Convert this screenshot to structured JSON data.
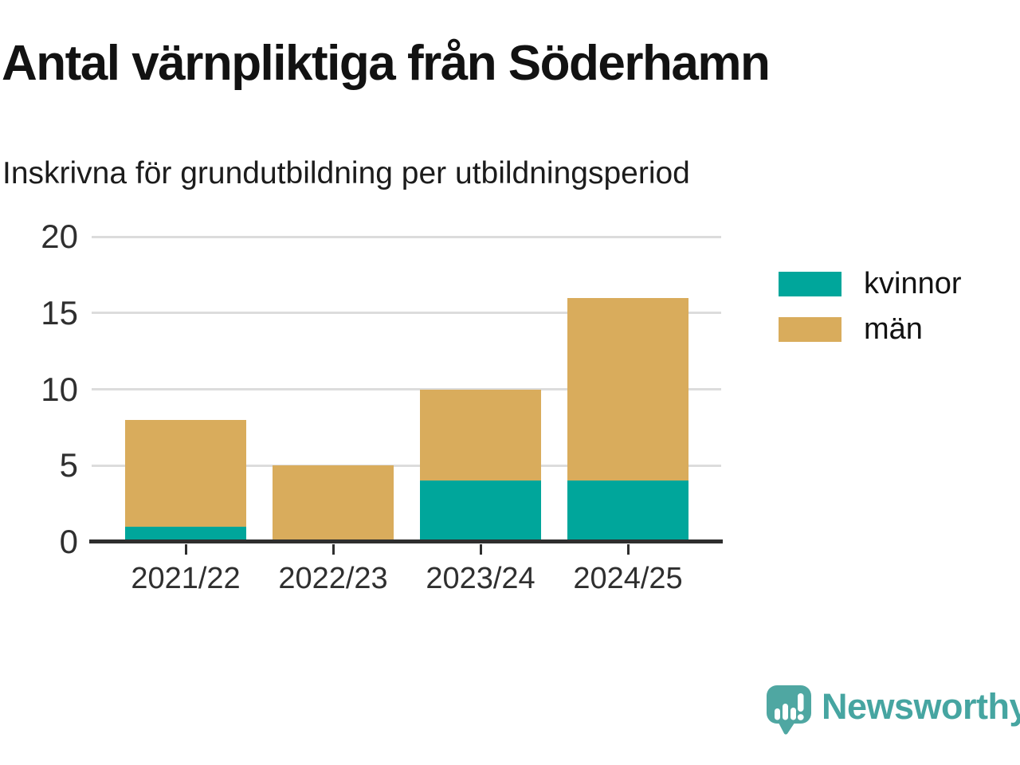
{
  "header": {
    "title": "Antal värnpliktiga från Söderhamn",
    "subtitle": "Inskrivna för grundutbildning per utbildningsperiod"
  },
  "chart_data": {
    "type": "bar",
    "stacked": true,
    "categories": [
      "2021/22",
      "2022/23",
      "2023/24",
      "2024/25"
    ],
    "series": [
      {
        "name": "kvinnor",
        "color": "#00a69b",
        "values": [
          1,
          0,
          4,
          4
        ]
      },
      {
        "name": "män",
        "color": "#d9ac5c",
        "values": [
          7,
          5,
          6,
          12
        ]
      }
    ],
    "totals": [
      8,
      5,
      10,
      16
    ],
    "title": "Antal värnpliktiga från Söderhamn",
    "subtitle": "Inskrivna för grundutbildning per utbildningsperiod",
    "xlabel": "",
    "ylabel": "",
    "ylim": [
      0,
      20
    ],
    "yticks": [
      0,
      5,
      10,
      15,
      20
    ],
    "grid": true,
    "legend_position": "right"
  },
  "colors": {
    "kvinnor": "#00a69b",
    "man": "#d9ac5c",
    "axis": "#2e2e2e",
    "grid": "#dcdcdc",
    "text": "#121212",
    "logo_teal": "#4fa7a2"
  },
  "legend": {
    "items": [
      {
        "label": "kvinnor",
        "color": "#00a69b"
      },
      {
        "label": "män",
        "color": "#d9ac5c"
      }
    ]
  },
  "footer": {
    "brand": "Newsworthy",
    "logo_icon": "speech-bubble-bar-chart-icon"
  }
}
